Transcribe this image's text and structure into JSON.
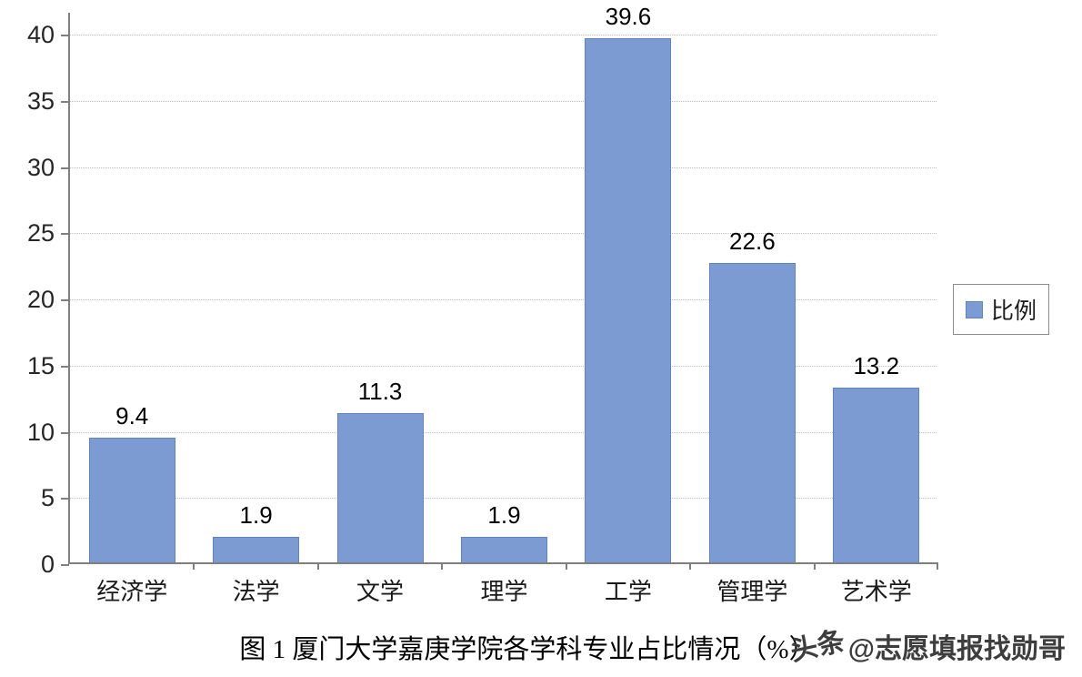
{
  "chart_data": {
    "type": "bar",
    "categories": [
      "经济学",
      "法学",
      "文学",
      "理学",
      "工学",
      "管理学",
      "艺术学"
    ],
    "values": [
      9.4,
      1.9,
      11.3,
      1.9,
      39.6,
      22.6,
      13.2
    ],
    "title": "图 1  厦门大学嘉庚学院各学科专业占比情况（%）",
    "xlabel": "",
    "ylabel": "",
    "ylim": [
      0,
      40
    ],
    "yticks": [
      0,
      5,
      10,
      15,
      20,
      25,
      30,
      35,
      40
    ],
    "grid": true,
    "legend_position": "right",
    "legend": [
      {
        "label": "比例",
        "color": "#7C9BD3"
      }
    ]
  },
  "watermark": {
    "logo": "头条",
    "handle": "@志愿填报找勋哥"
  },
  "colors": {
    "bar": "#7C9BD3",
    "bar_border": "#5E84C4",
    "axis": "#7F7F7F",
    "grid": "#BEBEBE"
  }
}
